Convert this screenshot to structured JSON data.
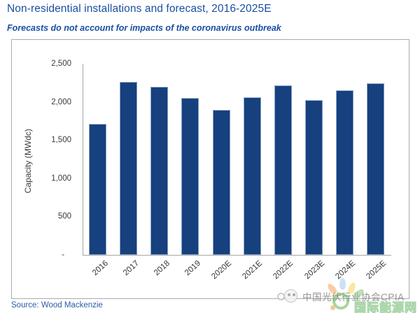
{
  "header": {
    "title": "Non-residential installations and forecast, 2016-2025E",
    "subtitle": "Forecasts do not account for impacts of the coronavirus outbreak"
  },
  "chart_data": {
    "type": "bar",
    "title": "Non-residential installations and forecast, 2016-2025E",
    "subtitle": "Forecasts do not account for impacts of the coronavirus outbreak",
    "categories": [
      "2016",
      "2017",
      "2018",
      "2019",
      "2020E",
      "2021E",
      "2022E",
      "2023E",
      "2024E",
      "2025E"
    ],
    "values": [
      1710,
      2260,
      2200,
      2050,
      1900,
      2060,
      2220,
      2020,
      2150,
      2240
    ],
    "xlabel": "",
    "ylabel": "Capacity (MWdc)",
    "ylim": [
      0,
      2500
    ],
    "yticks": [
      2500,
      2000,
      1500,
      1000,
      500,
      0
    ],
    "ytick_labels": [
      "2,500",
      "2,000",
      "1,500",
      "1,000",
      "500",
      "-"
    ],
    "grid": false,
    "legend": null,
    "bar_color": "#16407E",
    "source": "Wood Mackenzie"
  },
  "footer": {
    "source": "Source: Wood Mackenzie"
  },
  "watermarks": {
    "cpia_text": "中国光伏行业协会CPIA",
    "energy_text": "国际能源网"
  },
  "colors": {
    "title_blue": "#1A4FA3",
    "bar_navy": "#16407E",
    "axis_gray": "#A6A6A6",
    "frame_gray": "#ABABAB"
  }
}
